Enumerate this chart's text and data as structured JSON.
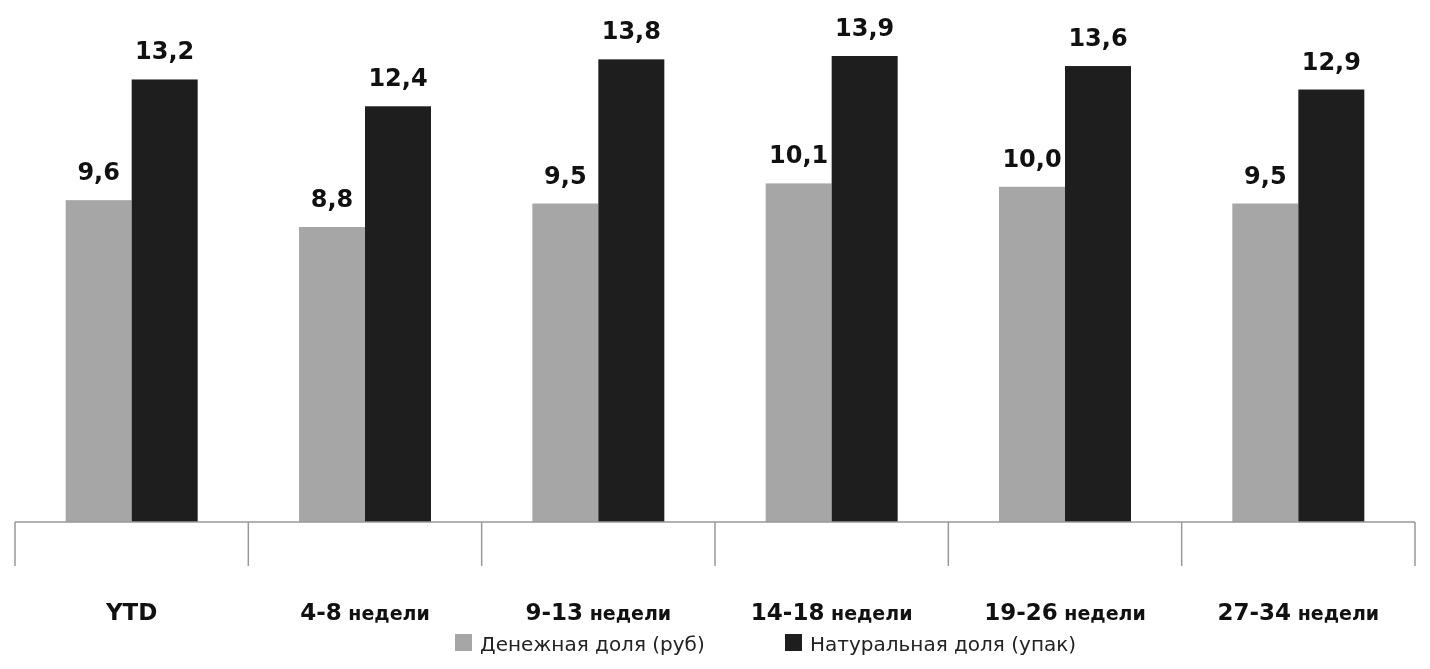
{
  "chart_data": {
    "type": "bar",
    "categories": [
      "YTD",
      "4-8 недели",
      "9-13 недели",
      "14-18 недели",
      "19-26 недели",
      "27-34 недели"
    ],
    "series": [
      {
        "name": "Денежная доля (руб)",
        "color": "#a6a6a6",
        "values": [
          9.6,
          8.8,
          9.5,
          10.1,
          10.0,
          9.5
        ],
        "value_labels": [
          "9,6",
          "8,8",
          "9,5",
          "10,1",
          "10,0",
          "9,5"
        ]
      },
      {
        "name": "Натуральная доля (упак)",
        "color": "#1e1e1e",
        "values": [
          13.2,
          12.4,
          13.8,
          13.9,
          13.6,
          12.9
        ],
        "value_labels": [
          "13,2",
          "12,4",
          "13,8",
          "13,9",
          "13,6",
          "12,9"
        ]
      }
    ],
    "legend": "bottom"
  }
}
